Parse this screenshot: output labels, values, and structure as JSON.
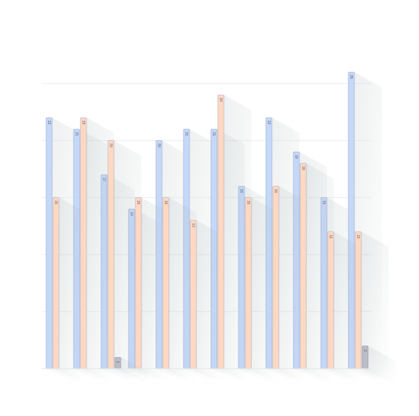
{
  "chart_data": {
    "type": "bar",
    "categories": [
      null,
      null,
      null,
      null,
      null,
      null,
      null,
      null,
      null,
      null,
      null,
      null
    ],
    "series": [
      {
        "color": "#c5d8f8",
        "values": [
          22,
          21,
          17,
          14,
          20,
          21,
          21,
          16,
          22,
          19,
          15,
          26
        ]
      },
      {
        "color": "#fdd8c3",
        "values": [
          15,
          22,
          20,
          15,
          15,
          13,
          24,
          15,
          16,
          18,
          12,
          12
        ]
      },
      {
        "color": "#babdc6",
        "values": [
          null,
          null,
          1,
          null,
          null,
          null,
          null,
          null,
          null,
          null,
          null,
          2
        ]
      }
    ],
    "ylim": [
      0,
      26
    ],
    "yticks": [
      0,
      5,
      10,
      15,
      20,
      25
    ],
    "grid": true
  }
}
